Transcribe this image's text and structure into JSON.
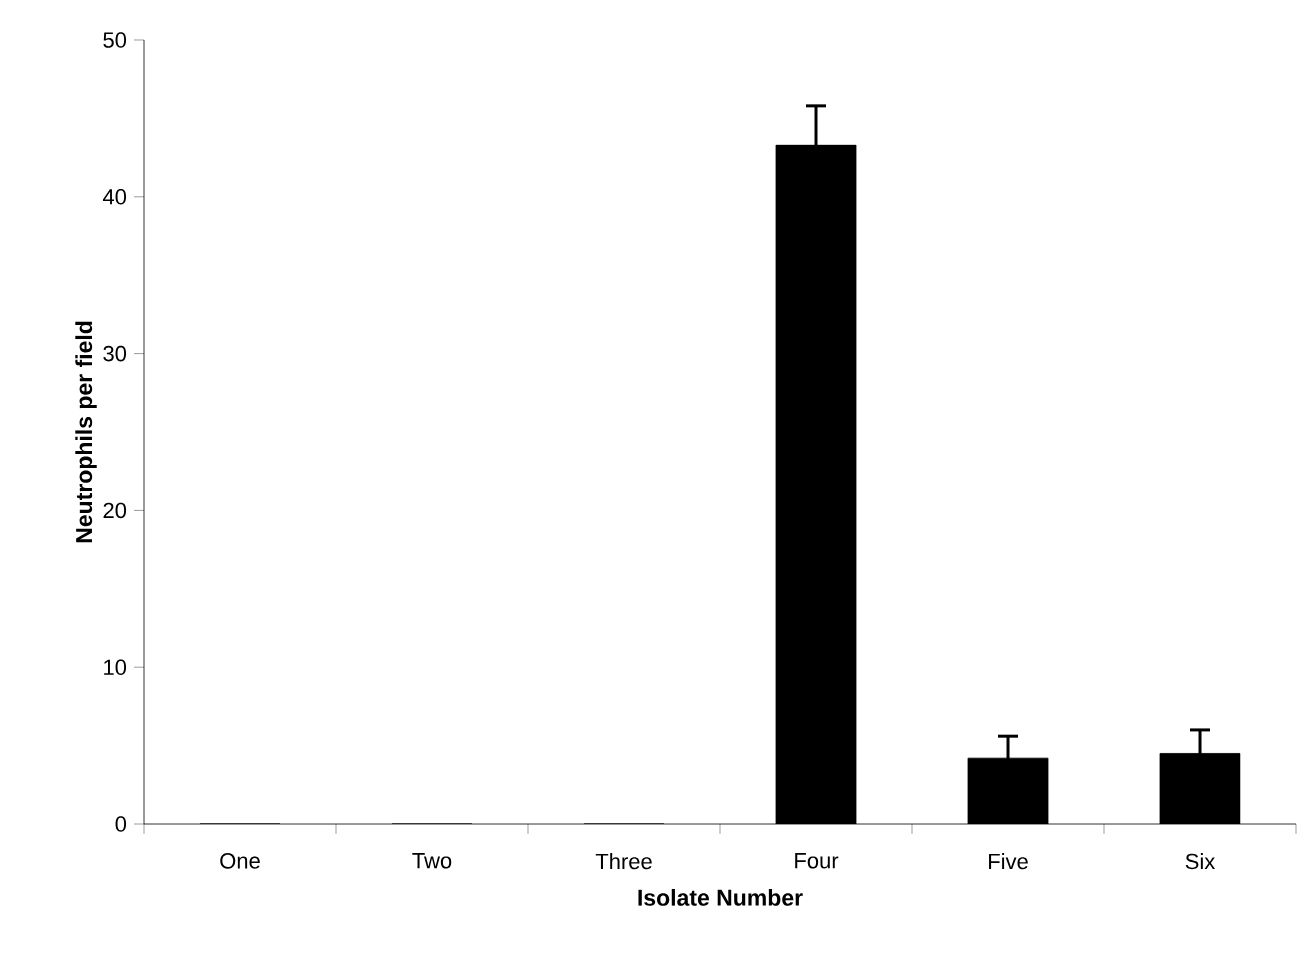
{
  "chart_data": {
    "type": "bar",
    "xlabel": "Isolate Number",
    "ylabel": "Neutrophils per field",
    "categories": [
      "One",
      "Two",
      "Three",
      "Four",
      "Five",
      "Six"
    ],
    "values": [
      0,
      0,
      0,
      43.3,
      4.2,
      4.5
    ],
    "errors": [
      null,
      null,
      null,
      2.5,
      1.4,
      1.5
    ],
    "color": "#000000",
    "ylim": [
      0,
      50
    ],
    "yticks": [
      0,
      10,
      20,
      30,
      40,
      50
    ]
  }
}
